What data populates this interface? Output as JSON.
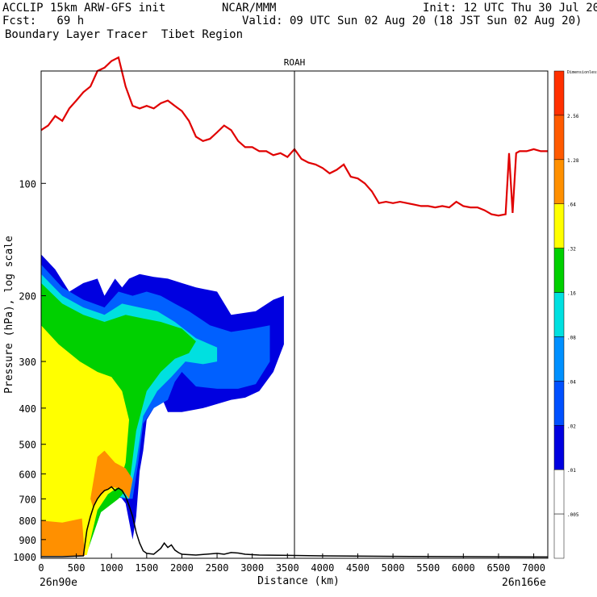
{
  "header": {
    "line1_left": "ACCLIP 15km ARW-GFS init",
    "line1_center": "NCAR/MMM",
    "line1_right": "Init: 12 UTC Thu 30 Jul 20",
    "line2_left": "Fcst:   69 h",
    "line2_right": "Valid: 09 UTC Sun 02 Aug 20 (18 JST Sun 02 Aug 20)",
    "line3_left": "Boundary Layer Tracer  Tibet Region"
  },
  "chart_data": {
    "type": "cross-section",
    "title": "ROAH",
    "xlabel": "Distance (km)",
    "ylabel": "Pressure (hPa), log scale",
    "x_ticks": [
      0,
      500,
      1000,
      1500,
      2000,
      2500,
      3000,
      3500,
      4000,
      4500,
      5000,
      5500,
      6000,
      6500,
      7000
    ],
    "y_ticks": [
      100,
      200,
      300,
      400,
      500,
      600,
      700,
      800,
      900,
      1000
    ],
    "xlim": [
      0,
      7200
    ],
    "ylim": [
      1010,
      50
    ],
    "y_scale": "log",
    "left_endpoint": "26n90e",
    "right_endpoint": "26n166e",
    "marker_line_x": 3600,
    "tropopause_line": {
      "color": "#e00000",
      "points": [
        [
          0,
          72
        ],
        [
          100,
          70
        ],
        [
          200,
          66
        ],
        [
          300,
          68
        ],
        [
          400,
          63
        ],
        [
          500,
          60
        ],
        [
          600,
          57
        ],
        [
          700,
          55
        ],
        [
          800,
          50
        ],
        [
          900,
          49
        ],
        [
          1000,
          47
        ],
        [
          1100,
          46
        ],
        [
          1200,
          55
        ],
        [
          1300,
          62
        ],
        [
          1400,
          63
        ],
        [
          1500,
          62
        ],
        [
          1600,
          63
        ],
        [
          1700,
          61
        ],
        [
          1800,
          60
        ],
        [
          1900,
          62
        ],
        [
          2000,
          64
        ],
        [
          2100,
          68
        ],
        [
          2200,
          75
        ],
        [
          2300,
          77
        ],
        [
          2400,
          76
        ],
        [
          2500,
          73
        ],
        [
          2600,
          70
        ],
        [
          2700,
          72
        ],
        [
          2800,
          77
        ],
        [
          2900,
          80
        ],
        [
          3000,
          80
        ],
        [
          3100,
          82
        ],
        [
          3200,
          82
        ],
        [
          3300,
          84
        ],
        [
          3400,
          83
        ],
        [
          3500,
          85
        ],
        [
          3600,
          81
        ],
        [
          3700,
          86
        ],
        [
          3800,
          88
        ],
        [
          3900,
          89
        ],
        [
          4000,
          91
        ],
        [
          4100,
          94
        ],
        [
          4200,
          92
        ],
        [
          4300,
          89
        ],
        [
          4400,
          96
        ],
        [
          4500,
          97
        ],
        [
          4600,
          100
        ],
        [
          4700,
          105
        ],
        [
          4800,
          113
        ],
        [
          4900,
          112
        ],
        [
          5000,
          113
        ],
        [
          5100,
          112
        ],
        [
          5200,
          113
        ],
        [
          5300,
          114
        ],
        [
          5400,
          115
        ],
        [
          5500,
          115
        ],
        [
          5600,
          116
        ],
        [
          5700,
          115
        ],
        [
          5800,
          116
        ],
        [
          5900,
          112
        ],
        [
          6000,
          115
        ],
        [
          6100,
          116
        ],
        [
          6200,
          116
        ],
        [
          6300,
          118
        ],
        [
          6400,
          121
        ],
        [
          6500,
          122
        ],
        [
          6600,
          121
        ],
        [
          6650,
          83
        ],
        [
          6700,
          120
        ],
        [
          6750,
          83
        ],
        [
          6800,
          82
        ],
        [
          6900,
          82
        ],
        [
          7000,
          81
        ],
        [
          7100,
          82
        ],
        [
          7200,
          82
        ]
      ]
    },
    "terrain_line": {
      "color": "#000000",
      "points": [
        [
          0,
          1000
        ],
        [
          300,
          1000
        ],
        [
          600,
          995
        ],
        [
          650,
          850
        ],
        [
          700,
          780
        ],
        [
          750,
          730
        ],
        [
          800,
          700
        ],
        [
          850,
          680
        ],
        [
          900,
          665
        ],
        [
          950,
          660
        ],
        [
          1000,
          650
        ],
        [
          1050,
          665
        ],
        [
          1100,
          655
        ],
        [
          1150,
          665
        ],
        [
          1200,
          690
        ],
        [
          1250,
          730
        ],
        [
          1300,
          780
        ],
        [
          1350,
          860
        ],
        [
          1400,
          920
        ],
        [
          1450,
          965
        ],
        [
          1500,
          980
        ],
        [
          1600,
          985
        ],
        [
          1700,
          950
        ],
        [
          1750,
          920
        ],
        [
          1800,
          945
        ],
        [
          1850,
          930
        ],
        [
          1900,
          960
        ],
        [
          1950,
          975
        ],
        [
          2000,
          985
        ],
        [
          2200,
          990
        ],
        [
          2500,
          980
        ],
        [
          2600,
          985
        ],
        [
          2700,
          975
        ],
        [
          2800,
          978
        ],
        [
          2900,
          985
        ],
        [
          3100,
          990
        ],
        [
          3500,
          992
        ],
        [
          4000,
          995
        ],
        [
          5000,
          998
        ],
        [
          6000,
          1000
        ],
        [
          7200,
          1002
        ]
      ]
    },
    "tracer_regions": [
      {
        "level": 0.01,
        "color": "#0000e0",
        "polygon": [
          [
            0,
            155
          ],
          [
            200,
            170
          ],
          [
            400,
            195
          ],
          [
            600,
            185
          ],
          [
            800,
            180
          ],
          [
            900,
            200
          ],
          [
            1050,
            180
          ],
          [
            1150,
            190
          ],
          [
            1250,
            180
          ],
          [
            1400,
            175
          ],
          [
            1600,
            178
          ],
          [
            1800,
            180
          ],
          [
            2000,
            185
          ],
          [
            2200,
            190
          ],
          [
            2500,
            195
          ],
          [
            2700,
            225
          ],
          [
            3050,
            220
          ],
          [
            3300,
            205
          ],
          [
            3450,
            200
          ],
          [
            3450,
            270
          ],
          [
            3300,
            320
          ],
          [
            3100,
            360
          ],
          [
            2900,
            375
          ],
          [
            2700,
            380
          ],
          [
            2500,
            390
          ],
          [
            2300,
            400
          ],
          [
            2000,
            410
          ],
          [
            1800,
            410
          ],
          [
            1700,
            370
          ],
          [
            1600,
            400
          ],
          [
            1500,
            430
          ],
          [
            1450,
            520
          ],
          [
            1400,
            590
          ],
          [
            1350,
            780
          ],
          [
            1300,
            900
          ],
          [
            1200,
            720
          ],
          [
            1100,
            680
          ],
          [
            900,
            680
          ],
          [
            750,
            760
          ],
          [
            600,
            990
          ],
          [
            0,
            990
          ]
        ]
      },
      {
        "level": 0.02,
        "color": "#0060ff",
        "polygon": [
          [
            0,
            165
          ],
          [
            300,
            190
          ],
          [
            600,
            205
          ],
          [
            900,
            215
          ],
          [
            1100,
            195
          ],
          [
            1300,
            200
          ],
          [
            1500,
            195
          ],
          [
            1700,
            200
          ],
          [
            1900,
            210
          ],
          [
            2100,
            220
          ],
          [
            2400,
            240
          ],
          [
            2700,
            250
          ],
          [
            3000,
            245
          ],
          [
            3250,
            240
          ],
          [
            3250,
            300
          ],
          [
            3050,
            345
          ],
          [
            2800,
            355
          ],
          [
            2500,
            355
          ],
          [
            2200,
            350
          ],
          [
            2000,
            320
          ],
          [
            1900,
            340
          ],
          [
            1800,
            380
          ],
          [
            1600,
            400
          ],
          [
            1450,
            440
          ],
          [
            1380,
            560
          ],
          [
            1300,
            700
          ],
          [
            1200,
            700
          ],
          [
            1000,
            690
          ],
          [
            800,
            760
          ],
          [
            620,
            990
          ],
          [
            0,
            990
          ]
        ]
      },
      {
        "level": 0.08,
        "color": "#00e0e0",
        "polygon": [
          [
            0,
            175
          ],
          [
            300,
            200
          ],
          [
            600,
            215
          ],
          [
            900,
            225
          ],
          [
            1150,
            210
          ],
          [
            1400,
            215
          ],
          [
            1650,
            220
          ],
          [
            1900,
            235
          ],
          [
            2200,
            260
          ],
          [
            2500,
            275
          ],
          [
            2500,
            300
          ],
          [
            2300,
            305
          ],
          [
            2050,
            300
          ],
          [
            1850,
            330
          ],
          [
            1650,
            360
          ],
          [
            1450,
            420
          ],
          [
            1350,
            560
          ],
          [
            1250,
            700
          ],
          [
            1100,
            690
          ],
          [
            850,
            760
          ],
          [
            630,
            990
          ],
          [
            0,
            990
          ]
        ]
      },
      {
        "level": 0.16,
        "color": "#00d000",
        "polygon": [
          [
            0,
            185
          ],
          [
            300,
            210
          ],
          [
            600,
            225
          ],
          [
            900,
            235
          ],
          [
            1200,
            225
          ],
          [
            1450,
            230
          ],
          [
            1700,
            235
          ],
          [
            2000,
            245
          ],
          [
            2200,
            265
          ],
          [
            2100,
            285
          ],
          [
            1900,
            295
          ],
          [
            1700,
            320
          ],
          [
            1500,
            360
          ],
          [
            1350,
            460
          ],
          [
            1250,
            650
          ],
          [
            1100,
            700
          ],
          [
            850,
            760
          ],
          [
            640,
            990
          ],
          [
            0,
            990
          ]
        ]
      },
      {
        "level": 0.32,
        "color": "#ffff00",
        "polygon": [
          [
            0,
            240
          ],
          [
            250,
            270
          ],
          [
            550,
            300
          ],
          [
            800,
            320
          ],
          [
            1000,
            330
          ],
          [
            1150,
            360
          ],
          [
            1250,
            430
          ],
          [
            1200,
            560
          ],
          [
            1100,
            650
          ],
          [
            950,
            680
          ],
          [
            800,
            750
          ],
          [
            650,
            990
          ],
          [
            0,
            990
          ]
        ]
      },
      {
        "level": 0.64,
        "color": "#ff9000",
        "polygon": [
          [
            0,
            800
          ],
          [
            300,
            810
          ],
          [
            580,
            790
          ],
          [
            620,
            995
          ],
          [
            0,
            995
          ]
        ]
      },
      {
        "level": 0.64,
        "color": "#ff9000",
        "polygon": [
          [
            800,
            540
          ],
          [
            900,
            520
          ],
          [
            1050,
            560
          ],
          [
            1200,
            580
          ],
          [
            1300,
            620
          ],
          [
            1250,
            700
          ],
          [
            1150,
            660
          ],
          [
            1000,
            650
          ],
          [
            900,
            670
          ],
          [
            800,
            700
          ],
          [
            740,
            740
          ],
          [
            700,
            700
          ]
        ]
      }
    ],
    "colorbar": {
      "labels": [
        "Dimensionless",
        "2.56",
        "1.28",
        ".64",
        ".32",
        ".16",
        ".08",
        ".04",
        ".02",
        ".01",
        ".005"
      ],
      "colors": [
        "#ff3000",
        "#ff5a00",
        "#ff9000",
        "#ffff00",
        "#00d000",
        "#00e0e0",
        "#0090ff",
        "#0050ff",
        "#0000e0",
        "#ffffff",
        "#ffffff"
      ]
    }
  }
}
